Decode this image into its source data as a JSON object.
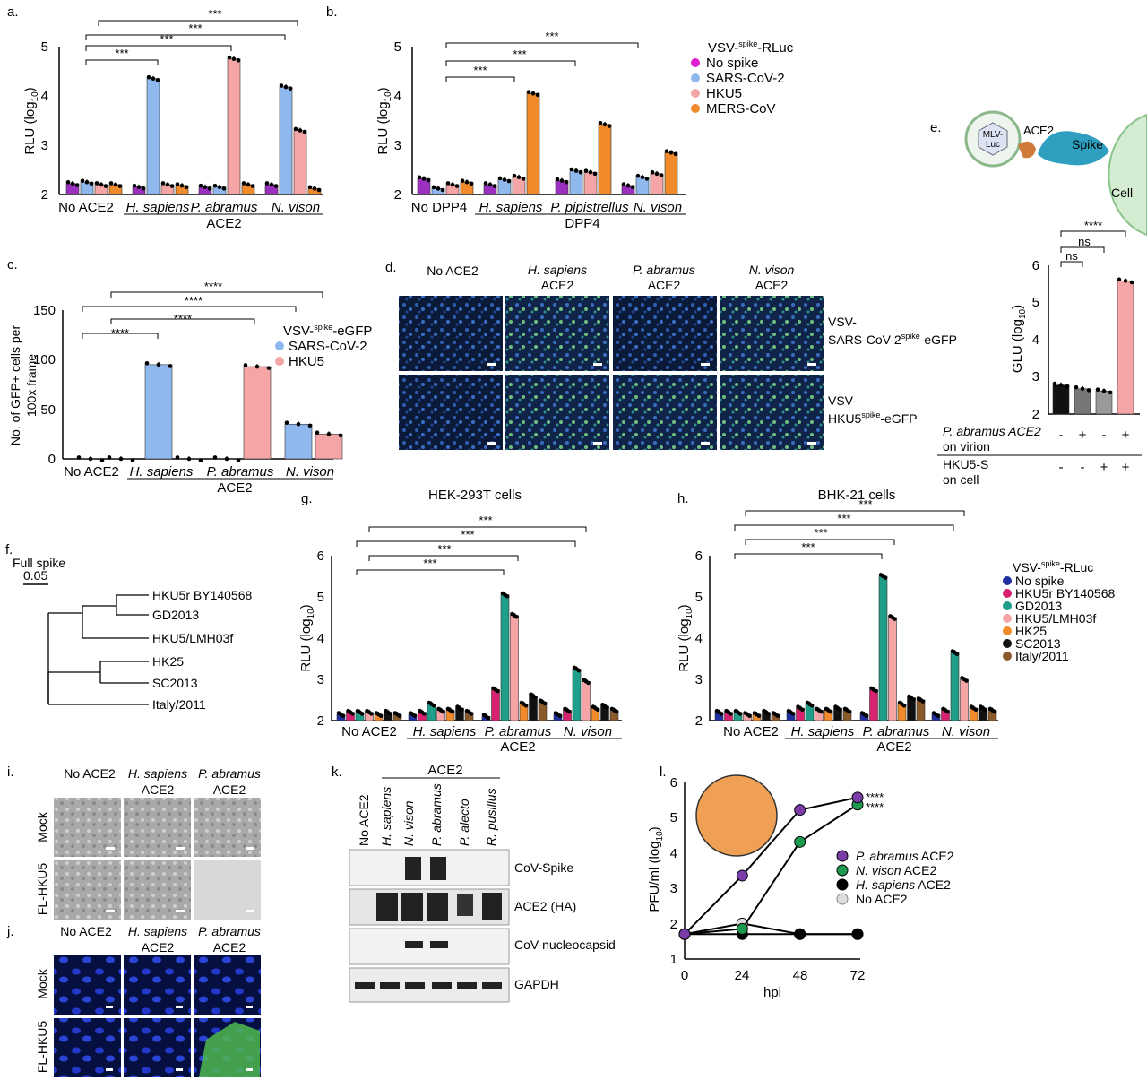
{
  "panels": {
    "a": {
      "letter": "a.",
      "ylabel": "RLU (log",
      "ylabel_sub": "10",
      "ylabel_end": ")",
      "yticks": [
        "2",
        "3",
        "4",
        "5"
      ],
      "groups": [
        "No ACE2",
        "H. sapiens",
        "P. abramus",
        "N. vison"
      ],
      "group_caption": "ACE2",
      "sig": [
        "***",
        "***",
        "***",
        "***"
      ]
    },
    "b": {
      "letter": "b.",
      "ylabel": "RLU (log",
      "ylabel_sub": "10",
      "ylabel_end": ")",
      "yticks": [
        "2",
        "3",
        "4",
        "5"
      ],
      "groups": [
        "No DPP4",
        "H. sapiens",
        "P. pipistrellus",
        "N. vison"
      ],
      "group_caption": "DPP4",
      "sig": [
        "***",
        "***",
        "***"
      ],
      "legend_title_pre": "VSV-",
      "legend_title_sup": "spike",
      "legend_title_post": "-RLuc",
      "legend": [
        "No spike",
        "SARS-CoV-2",
        "HKU5",
        "MERS-CoV"
      ]
    },
    "c": {
      "letter": "c.",
      "ylabel_line1": "No. of GFP+ cells per",
      "ylabel_line2": "100x frame",
      "yticks": [
        "0",
        "50",
        "100",
        "150"
      ],
      "groups": [
        "No ACE2",
        "H. sapiens",
        "P. abramus",
        "N. vison"
      ],
      "group_caption": "ACE2",
      "sig": [
        "****",
        "****",
        "****",
        "****"
      ],
      "legend_title_pre": "VSV-",
      "legend_title_sup": "spike",
      "legend_title_post": "-eGFP",
      "legend": [
        "SARS-CoV-2",
        "HKU5"
      ]
    },
    "d": {
      "letter": "d.",
      "cols": [
        "No ACE2",
        "H. sapiens",
        "ACE2",
        "P. abramus",
        "ACE2",
        "N. vison",
        "ACE2"
      ],
      "row1_line1": "VSV-",
      "row1_line2_pre": "SARS-CoV-2",
      "row1_line2_sup": "spike",
      "row1_line2_post": "-eGFP",
      "row2_line1": "VSV-",
      "row2_line2_pre": "HKU5",
      "row2_line2_sup": "spike",
      "row2_line2_post": "-eGFP"
    },
    "e": {
      "letter": "e.",
      "virion": "MLV-",
      "virion2": "Luc",
      "ace2": "ACE2",
      "spike": "Spike",
      "cell": "Cell",
      "ylabel": "GLU (log",
      "ylabel_sub": "10",
      "ylabel_end": ")",
      "yticks": [
        "2",
        "3",
        "4",
        "5",
        "6"
      ],
      "sig": [
        "ns",
        "ns",
        "****"
      ],
      "row1_line1": "P. abramus ACE2",
      "row1_line2": "on virion",
      "row1_signs": [
        "-",
        "+",
        "-",
        "+"
      ],
      "row2_line1": "HKU5-S",
      "row2_line2": "on cell",
      "row2_signs": [
        "-",
        "-",
        "+",
        "+"
      ]
    },
    "f": {
      "letter": "f.",
      "scale_title": "Full spike",
      "scale_value": "0.05",
      "taxa": [
        "HKU5r BY140568",
        "GD2013",
        "HKU5/LMH03f",
        "HK25",
        "SC2013",
        "Italy/2011"
      ]
    },
    "g": {
      "letter": "g.",
      "title": "HEK-293T cells",
      "ylabel": "RLU (log",
      "ylabel_sub": "10",
      "ylabel_end": ")",
      "yticks": [
        "2",
        "3",
        "4",
        "5",
        "6"
      ],
      "groups": [
        "No ACE2",
        "H. sapiens",
        "P. abramus",
        "N. vison"
      ],
      "group_caption": "ACE2",
      "sig": [
        "***",
        "***",
        "***",
        "***"
      ]
    },
    "h": {
      "letter": "h.",
      "title": "BHK-21 cells",
      "ylabel": "RLU (log",
      "ylabel_sub": "10",
      "ylabel_end": ")",
      "yticks": [
        "2",
        "3",
        "4",
        "5",
        "6"
      ],
      "groups": [
        "No ACE2",
        "H. sapiens",
        "P. abramus",
        "N. vison"
      ],
      "group_caption": "ACE2",
      "sig": [
        "***",
        "***",
        "***",
        "***"
      ],
      "legend_title_pre": "VSV-",
      "legend_title_sup": "spike",
      "legend_title_post": "-RLuc",
      "legend": [
        "No spike",
        "HKU5r BY140568",
        "GD2013",
        "HKU5/LMH03f",
        "HK25",
        "SC2013",
        "Italy/2011"
      ]
    },
    "i": {
      "letter": "i.",
      "cols": [
        "No ACE2",
        "H. sapiens",
        "ACE2",
        "P. abramus",
        "ACE2"
      ],
      "rows": [
        "Mock",
        "FL-HKU5"
      ]
    },
    "j": {
      "letter": "j.",
      "cols": [
        "No ACE2",
        "H. sapiens",
        "ACE2",
        "P. abramus",
        "ACE2"
      ],
      "rows": [
        "Mock",
        "FL-HKU5"
      ]
    },
    "k": {
      "letter": "k.",
      "header": "ACE2",
      "lanes": [
        "No ACE2",
        "H. sapiens",
        "N. vison",
        "P. abramus",
        "P. alecto",
        "R. pusillus"
      ],
      "blots": [
        "CoV-Spike",
        "ACE2 (HA)",
        "CoV-nucleocapsid",
        "GAPDH"
      ]
    },
    "l": {
      "letter": "l.",
      "ylabel": "PFU/ml (log",
      "ylabel_sub": "10",
      "ylabel_end": ")",
      "xlabel": "hpi",
      "yticks": [
        "1",
        "2",
        "3",
        "4",
        "5",
        "6"
      ],
      "xticks": [
        "0",
        "24",
        "48",
        "72"
      ],
      "sig": [
        "****",
        "****"
      ],
      "legend": [
        "P. abramus",
        "ACE2",
        "N. vison",
        "ACE2",
        "H. sapiens",
        "ACE2",
        "No ACE2"
      ]
    }
  },
  "chart_data": [
    {
      "panel": "a",
      "type": "bar",
      "categories": [
        "No ACE2",
        "H. sapiens",
        "P. abramus",
        "N. vison"
      ],
      "ylabel": "RLU (log10)",
      "ylim": [
        2,
        5
      ],
      "series": [
        {
          "name": "No spike",
          "values": [
            2.22,
            2.15,
            2.15,
            2.2
          ],
          "color": "#9b2fbf"
        },
        {
          "name": "SARS-CoV-2",
          "values": [
            2.25,
            4.35,
            2.15,
            4.18
          ],
          "color": "#8fb8ef"
        },
        {
          "name": "HKU5",
          "values": [
            2.2,
            2.2,
            4.75,
            3.3
          ],
          "color": "#f5a5a5"
        },
        {
          "name": "MERS-CoV",
          "values": [
            2.2,
            2.18,
            2.2,
            2.12
          ],
          "color": "#f08a2a"
        }
      ]
    },
    {
      "panel": "b",
      "type": "bar",
      "categories": [
        "No DPP4",
        "H. sapiens",
        "P. pipistrellus",
        "N. vison"
      ],
      "ylabel": "RLU (log10)",
      "ylim": [
        2,
        5
      ],
      "series": [
        {
          "name": "No spike",
          "values": [
            2.32,
            2.2,
            2.28,
            2.18
          ],
          "color": "#9b2fbf"
        },
        {
          "name": "SARS-CoV-2",
          "values": [
            2.12,
            2.3,
            2.48,
            2.35
          ],
          "color": "#8fb8ef"
        },
        {
          "name": "HKU5",
          "values": [
            2.2,
            2.35,
            2.45,
            2.42
          ],
          "color": "#f5a5a5"
        },
        {
          "name": "MERS-CoV",
          "values": [
            2.25,
            4.05,
            3.42,
            2.85
          ],
          "color": "#f08a2a"
        }
      ]
    },
    {
      "panel": "c",
      "type": "bar",
      "categories": [
        "No ACE2",
        "H. sapiens",
        "P. abramus",
        "N. vison"
      ],
      "ylabel": "No. of GFP+ cells per 100x frame",
      "ylim": [
        0,
        150
      ],
      "series": [
        {
          "name": "SARS-CoV-2",
          "values": [
            0,
            95,
            0,
            35
          ],
          "color": "#8fb8ef"
        },
        {
          "name": "HKU5",
          "values": [
            0,
            0,
            93,
            25
          ],
          "color": "#f5a5a5"
        }
      ]
    },
    {
      "panel": "e",
      "type": "bar",
      "categories": [
        "1",
        "2",
        "3",
        "4"
      ],
      "ylabel": "GLU (log10)",
      "ylim": [
        2,
        6
      ],
      "series": [
        {
          "values": [
            2.78,
            2.68,
            2.62,
            5.58
          ]
        }
      ]
    },
    {
      "panel": "g",
      "type": "bar",
      "categories": [
        "No ACE2",
        "H. sapiens",
        "P. abramus",
        "N. vison"
      ],
      "ylabel": "RLU (log10)",
      "ylim": [
        2,
        6
      ],
      "series": [
        {
          "name": "No spike",
          "values": [
            2.15,
            2.15,
            2.1,
            2.15
          ],
          "color": "#1f2fa0"
        },
        {
          "name": "HKU5r BY140568",
          "values": [
            2.2,
            2.2,
            2.75,
            2.25
          ],
          "color": "#d8216f"
        },
        {
          "name": "GD2013",
          "values": [
            2.2,
            2.4,
            5.05,
            3.25
          ],
          "color": "#1f9e8a"
        },
        {
          "name": "HKU5/LMH03f",
          "values": [
            2.2,
            2.25,
            4.55,
            2.95
          ],
          "color": "#f5a5a5"
        },
        {
          "name": "HK25",
          "values": [
            2.15,
            2.25,
            2.4,
            2.3
          ],
          "color": "#f08a2a"
        },
        {
          "name": "SC2013",
          "values": [
            2.2,
            2.3,
            2.6,
            2.35
          ],
          "color": "#111111"
        },
        {
          "name": "Italy/2011",
          "values": [
            2.15,
            2.2,
            2.45,
            2.25
          ],
          "color": "#8b5a2b"
        }
      ]
    },
    {
      "panel": "h",
      "type": "bar",
      "categories": [
        "No ACE2",
        "H. sapiens",
        "P. abramus",
        "N. vison"
      ],
      "ylabel": "RLU (log10)",
      "ylim": [
        2,
        6
      ],
      "series": [
        {
          "name": "No spike",
          "values": [
            2.2,
            2.2,
            2.15,
            2.15
          ],
          "color": "#1f2fa0"
        },
        {
          "name": "HKU5r BY140568",
          "values": [
            2.2,
            2.3,
            2.75,
            2.25
          ],
          "color": "#d8216f"
        },
        {
          "name": "GD2013",
          "values": [
            2.2,
            2.4,
            5.5,
            3.65
          ],
          "color": "#1f9e8a"
        },
        {
          "name": "HKU5/LMH03f",
          "values": [
            2.15,
            2.25,
            4.5,
            3.0
          ],
          "color": "#f5a5a5"
        },
        {
          "name": "HK25",
          "values": [
            2.15,
            2.25,
            2.4,
            2.3
          ],
          "color": "#f08a2a"
        },
        {
          "name": "SC2013",
          "values": [
            2.2,
            2.3,
            2.55,
            2.3
          ],
          "color": "#111111"
        },
        {
          "name": "Italy/2011",
          "values": [
            2.15,
            2.25,
            2.5,
            2.25
          ],
          "color": "#8b5a2b"
        }
      ]
    },
    {
      "panel": "l",
      "type": "line",
      "x": [
        0,
        24,
        48,
        72
      ],
      "xlabel": "hpi",
      "ylabel": "PFU/ml (log10)",
      "xlim": [
        0,
        72
      ],
      "ylim": [
        1,
        6
      ],
      "series": [
        {
          "name": "P. abramus ACE2",
          "values": [
            1.7,
            3.35,
            5.2,
            5.55
          ],
          "color": "#7a3da8"
        },
        {
          "name": "N. vison ACE2",
          "values": [
            1.7,
            1.85,
            4.3,
            5.35
          ],
          "color": "#1e9a4e"
        },
        {
          "name": "H. sapiens ACE2",
          "values": [
            1.7,
            1.7,
            1.7,
            1.7
          ],
          "color": "#000000"
        },
        {
          "name": "No ACE2",
          "values": [
            1.7,
            2.0,
            1.7,
            1.7
          ],
          "color": "#dddddd"
        }
      ]
    }
  ]
}
